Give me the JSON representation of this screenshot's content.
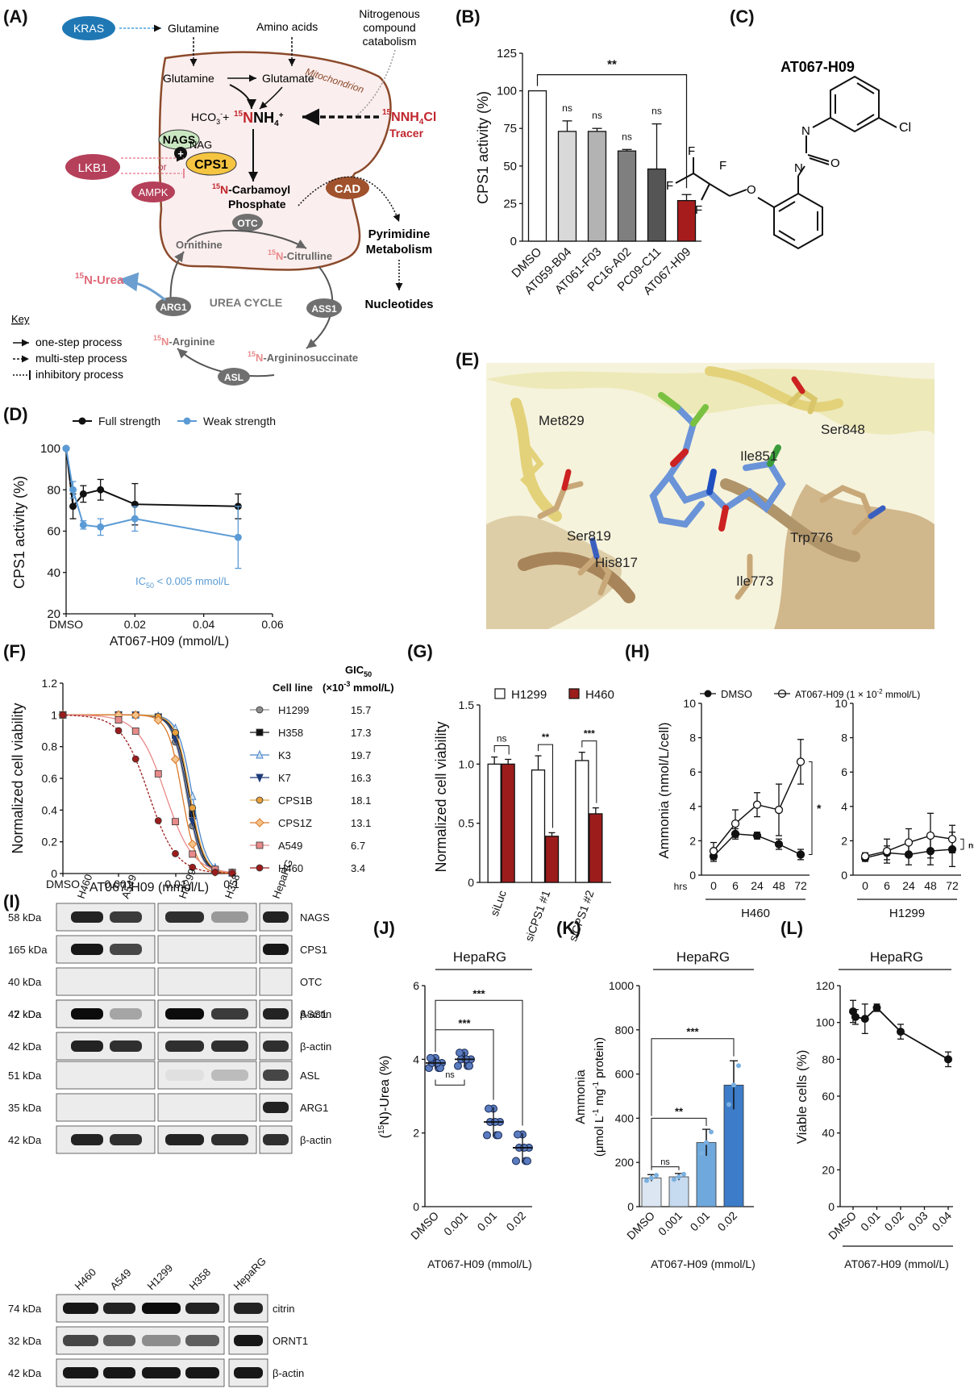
{
  "panels": {
    "A": "(A)",
    "B": "(B)",
    "C": "(C)",
    "D": "(D)",
    "E": "(E)",
    "F": "(F)",
    "G": "(G)",
    "H": "(H)",
    "I": "(I)",
    "J": "(J)",
    "K": "(K)",
    "L": "(L)"
  },
  "A": {
    "kras": "KRAS",
    "glutamine_top": "Glutamine",
    "amino_acids": "Amino acids",
    "nitro1": "Nitrogenous",
    "nitro2": "compound",
    "nitro3": "catabolism",
    "mito": "Mitochondrion",
    "glutamine": "Glutamine",
    "glutamate": "Glutamate",
    "hco3": "HCO",
    "hco3_sup": "3",
    "hco3_sub": "-",
    "plus": "+",
    "n15": "15",
    "nh4": "NH",
    "nh4_sub": "4",
    "nh4_sup": "+",
    "nh4cl": "NH",
    "nh4cl_sub": "4",
    "nh4cl_end": "Cl",
    "tracer": "Tracer",
    "nags": "NAGS",
    "nag": "NAG",
    "cps1": "CPS1",
    "lkb1": "LKB1",
    "or": "or",
    "ampk": "AMPK",
    "cad": "CAD",
    "carbamoyl1": "-Carbamoyl",
    "carbamoyl2": "Phosphate",
    "otc": "OTC",
    "ornithine": "Ornithine",
    "citrulline": "-Citrulline",
    "pyr1": "Pyrimidine",
    "pyr2": "Metabolism",
    "nucleotides": "Nucleotides",
    "urea": "-Urea",
    "urea_cycle": "UREA CYCLE",
    "arg1": "ARG1",
    "ass1": "ASS1",
    "asl": "ASL",
    "arginine": "-Arginine",
    "argsucc": "-Argininosuccinate",
    "key": "Key",
    "key1": "one-step process",
    "key2": "multi-step process",
    "key3": "inhibitory process"
  },
  "C": {
    "title": "AT067-H09",
    "cl": "Cl",
    "n1": "N",
    "n2": "N",
    "o1": "O",
    "o2": "O",
    "f1": "F",
    "f2": "F",
    "f3": "F",
    "f4": "F"
  },
  "E": {
    "labels": [
      "Met829",
      "Ser848",
      "Ile851",
      "Ser819",
      "His817",
      "Trp776",
      "Ile773"
    ]
  },
  "I": {
    "lanes_top": [
      "H460",
      "A549",
      "H1299",
      "H358",
      "HepaRG"
    ],
    "rows": [
      {
        "kda": "58 kDa",
        "protein": "NAGS"
      },
      {
        "kda": "165 kDa",
        "protein": "CPS1"
      },
      {
        "kda": "40 kDa",
        "protein": "OTC"
      },
      {
        "kda": "42 kDa",
        "protein": "β-actin"
      },
      {
        "kda": "47 kDa",
        "protein": "ASS1"
      },
      {
        "kda": "42 kDa",
        "protein": "β-actin"
      },
      {
        "kda": "51 kDa",
        "protein": "ASL"
      },
      {
        "kda": "35 kDa",
        "protein": "ARG1"
      },
      {
        "kda": "42 kDa",
        "protein": "β-actin"
      }
    ],
    "lanes_bottom": [
      "H460",
      "A549",
      "H1299",
      "H358",
      "HepaRG"
    ],
    "rows_bottom": [
      {
        "kda": "74 kDa",
        "protein": "citrin"
      },
      {
        "kda": "32 kDa",
        "protein": "ORNT1"
      },
      {
        "kda": "42 kDa",
        "protein": "β-actin"
      }
    ]
  },
  "chart_data": [
    {
      "id": "B",
      "type": "bar",
      "categories": [
        "DMSO",
        "AT059-B04",
        "AT061-F03",
        "PC16-A02",
        "PC09-C11",
        "AT067-H09"
      ],
      "values": [
        100,
        73,
        73,
        60,
        48,
        27
      ],
      "errors": [
        0,
        7,
        2,
        1,
        30,
        4
      ],
      "colors": [
        "#ffffff",
        "#d9d9d9",
        "#b3b3b3",
        "#7f7f7f",
        "#555555",
        "#a61c1c"
      ],
      "annotations": [
        "",
        "ns",
        "ns",
        "ns",
        "ns",
        ""
      ],
      "bracket": "**",
      "ylabel": "CPS1 activity (%)",
      "ylim": [
        0,
        125
      ],
      "yticks": [
        0,
        25,
        50,
        75,
        100,
        125
      ]
    },
    {
      "id": "D",
      "type": "line",
      "legend": [
        "Full strength",
        "Weak strength"
      ],
      "ylabel": "CPS1 activity (%)",
      "xlabel": "AT067-H09 (mmol/L)",
      "xticks": [
        "DMSO",
        "0.02",
        "0.04",
        "0.06"
      ],
      "xlim": [
        0,
        0.06
      ],
      "ylim": [
        20,
        100
      ],
      "yticks": [
        20,
        40,
        60,
        80,
        100
      ],
      "annotation": "IC",
      "annotation_sub": "50",
      "annotation_end": " < 0.005 mmol/L",
      "series": [
        {
          "name": "Full strength",
          "color": "#111111",
          "x": [
            0,
            0.002,
            0.005,
            0.01,
            0.02,
            0.05
          ],
          "y": [
            100,
            72,
            78,
            80,
            73,
            72
          ],
          "err": [
            0,
            6,
            4,
            5,
            10,
            6
          ]
        },
        {
          "name": "Weak strength",
          "color": "#5b9bd5",
          "x": [
            0,
            0.002,
            0.005,
            0.01,
            0.02,
            0.05
          ],
          "y": [
            100,
            80,
            63,
            62,
            66,
            57
          ],
          "err": [
            0,
            4,
            2,
            4,
            6,
            15
          ]
        }
      ]
    },
    {
      "id": "F",
      "type": "line",
      "ylabel": "Normalized cell viability",
      "xlabel": "AT067-H09 (mmol/L)",
      "xticks": [
        "DMSO",
        "0.001",
        "0.01",
        "0.1"
      ],
      "ylim": [
        0,
        1.2
      ],
      "yticks": [
        0,
        0.2,
        0.4,
        0.6,
        0.8,
        1.0,
        1.2
      ],
      "ytick_labels": [
        "0",
        "0.2",
        "0.4",
        "0.6",
        "0.8",
        "1",
        "1.2"
      ],
      "table_header": [
        "Cell line",
        "GIC",
        "50",
        "(×10",
        "-3",
        " mmol/L)"
      ],
      "series": [
        {
          "name": "H1299",
          "gic50": "15.7",
          "color": "#8c8c8c",
          "marker": "circle-gray"
        },
        {
          "name": "H358",
          "gic50": "17.3",
          "color": "#111111",
          "marker": "square"
        },
        {
          "name": "K3",
          "gic50": "19.7",
          "color": "#4a86c8",
          "marker": "triangle-up"
        },
        {
          "name": "K7",
          "gic50": "16.3",
          "color": "#1f3c7a",
          "marker": "triangle-down"
        },
        {
          "name": "CPS1B",
          "gic50": "18.1",
          "color": "#e6a03c",
          "marker": "circle-orange"
        },
        {
          "name": "CPS1Z",
          "gic50": "13.1",
          "color": "#d9782a",
          "marker": "diamond"
        },
        {
          "name": "A549",
          "gic50": "6.7",
          "color": "#e88a8a",
          "marker": "square-pink"
        },
        {
          "name": "H460",
          "gic50": "3.4",
          "color": "#9c1c1c",
          "marker": "circle-red"
        }
      ]
    },
    {
      "id": "G",
      "type": "bar",
      "categories": [
        "siLuc",
        "siCPS1 #1",
        "siCPS1 #2"
      ],
      "legend": [
        "H1299",
        "H460"
      ],
      "ylabel": "Normalized cell viability",
      "ylim": [
        0,
        1.5
      ],
      "yticks": [
        0,
        0.5,
        1.0,
        1.5
      ],
      "ytick_labels": [
        "0",
        "0.5",
        "1.0",
        "1.5"
      ],
      "series": [
        {
          "name": "H1299",
          "color": "#ffffff",
          "values": [
            1.0,
            0.95,
            1.03
          ],
          "err": [
            0.06,
            0.12,
            0.07
          ]
        },
        {
          "name": "H460",
          "color": "#9c1c1c",
          "values": [
            1.0,
            0.39,
            0.58
          ],
          "err": [
            0.04,
            0.03,
            0.05
          ]
        }
      ],
      "annotations": [
        "ns",
        "**",
        "***"
      ]
    },
    {
      "id": "H",
      "type": "line",
      "legend": [
        "DMSO",
        "AT067-H09 (1 × 10",
        "-2",
        " mmol/L)"
      ],
      "ylabel": "Ammonia (nmol/L/cell)",
      "xticks": [
        "0",
        "6",
        "24",
        "48",
        "72"
      ],
      "xprefix": "hrs",
      "ylim": [
        0,
        10
      ],
      "yticks": [
        0,
        2,
        4,
        6,
        8,
        10
      ],
      "subplots": [
        {
          "cell": "H460",
          "sig": "*",
          "series": [
            {
              "name": "DMSO",
              "y": [
                1.1,
                2.4,
                2.3,
                1.8,
                1.2
              ],
              "err": [
                0.3,
                0.3,
                0.2,
                0.3,
                0.3
              ]
            },
            {
              "name": "AT067-H09",
              "y": [
                1.4,
                3.0,
                4.1,
                3.8,
                6.6
              ],
              "err": [
                0.5,
                0.8,
                0.7,
                1.5,
                1.3
              ]
            }
          ]
        },
        {
          "cell": "H1299",
          "sig": "ns",
          "series": [
            {
              "name": "DMSO",
              "y": [
                1.0,
                1.3,
                1.2,
                1.4,
                1.5
              ],
              "err": [
                0.2,
                0.4,
                0.6,
                0.8,
                1.0
              ]
            },
            {
              "name": "AT067-H09",
              "y": [
                1.1,
                1.4,
                1.9,
                2.3,
                2.1
              ],
              "err": [
                0.2,
                0.7,
                0.8,
                1.3,
                0.8
              ]
            }
          ]
        }
      ]
    },
    {
      "id": "J",
      "type": "scatter",
      "title": "HepaRG",
      "ylabel": "(",
      "ylabel_sup": "15",
      "ylabel_end": "N)-Urea (%)",
      "xlabel": "AT067-H09 (mmol/L)",
      "categories": [
        "DMSO",
        "0.001",
        "0.01",
        "0.02"
      ],
      "means": [
        3.9,
        4.0,
        2.3,
        1.6
      ],
      "errors": [
        0.15,
        0.2,
        0.4,
        0.4
      ],
      "ylim": [
        0,
        6
      ],
      "yticks": [
        0,
        2,
        4,
        6
      ],
      "annotations": [
        "ns",
        "***",
        "***"
      ]
    },
    {
      "id": "K",
      "type": "bar",
      "title": "HepaRG",
      "ylabel": "Ammonia",
      "ylabel2": "(μmol L",
      "ylabel2_sup1": "-1",
      "ylabel2_mid": " mg",
      "ylabel2_sup2": "-1",
      "ylabel2_end": " protein)",
      "xlabel": "AT067-H09 (mmol/L)",
      "categories": [
        "DMSO",
        "0.001",
        "0.01",
        "0.02"
      ],
      "values": [
        130,
        135,
        290,
        550
      ],
      "errors": [
        15,
        15,
        60,
        110
      ],
      "colors": [
        "#dce6f2",
        "#c6dbef",
        "#6fa8dc",
        "#3d7cc9"
      ],
      "ylim": [
        0,
        1000
      ],
      "yticks": [
        0,
        200,
        400,
        600,
        800,
        1000
      ],
      "annotations": [
        "ns",
        "**",
        "***"
      ]
    },
    {
      "id": "L",
      "type": "line",
      "title": "HepaRG",
      "ylabel": "Viable cells (%)",
      "xlabel": "AT067-H09 (mmol/L)",
      "xticks": [
        "DMSO",
        "0.01",
        "0.02",
        "0.03",
        "0.04"
      ],
      "ylim": [
        0,
        120
      ],
      "yticks": [
        0,
        20,
        40,
        60,
        80,
        100,
        120
      ],
      "x": [
        0,
        0.001,
        0.005,
        0.01,
        0.02,
        0.04
      ],
      "y": [
        106,
        103,
        102,
        108,
        95,
        80
      ],
      "err": [
        6,
        4,
        8,
        2,
        4,
        4
      ]
    }
  ]
}
